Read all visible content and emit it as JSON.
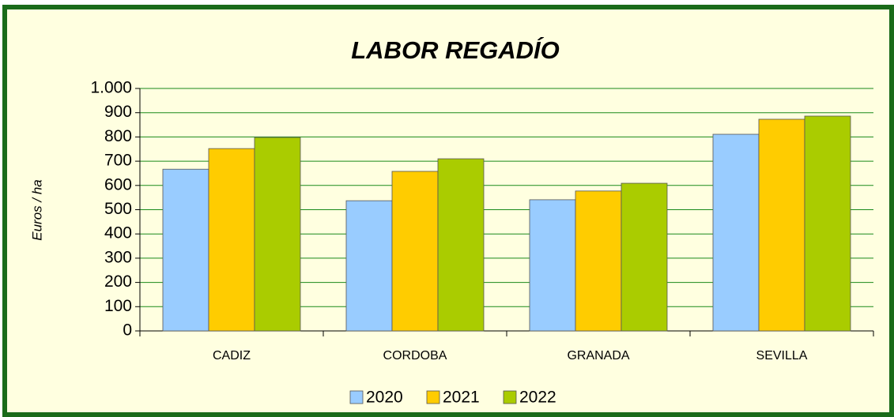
{
  "chart_data": {
    "type": "bar",
    "title": "LABOR REGADÍO",
    "y_label": "Euros / ha",
    "categories": [
      "CADIZ",
      "CORDOBA",
      "GRANADA",
      "SEVILLA"
    ],
    "series": [
      {
        "name": "2020",
        "color": "#99ccff",
        "values": [
          667,
          537,
          541,
          811
        ]
      },
      {
        "name": "2021",
        "color": "#ffcc00",
        "values": [
          752,
          658,
          577,
          873
        ]
      },
      {
        "name": "2022",
        "color": "#aacc00",
        "values": [
          798,
          710,
          609,
          886
        ]
      }
    ],
    "ylim": [
      0,
      1000
    ],
    "yticks": [
      0,
      100,
      200,
      300,
      400,
      500,
      600,
      700,
      800,
      900,
      {
        "value": 1000,
        "label": "1.000"
      }
    ],
    "grid": true,
    "legend": "bottom"
  }
}
